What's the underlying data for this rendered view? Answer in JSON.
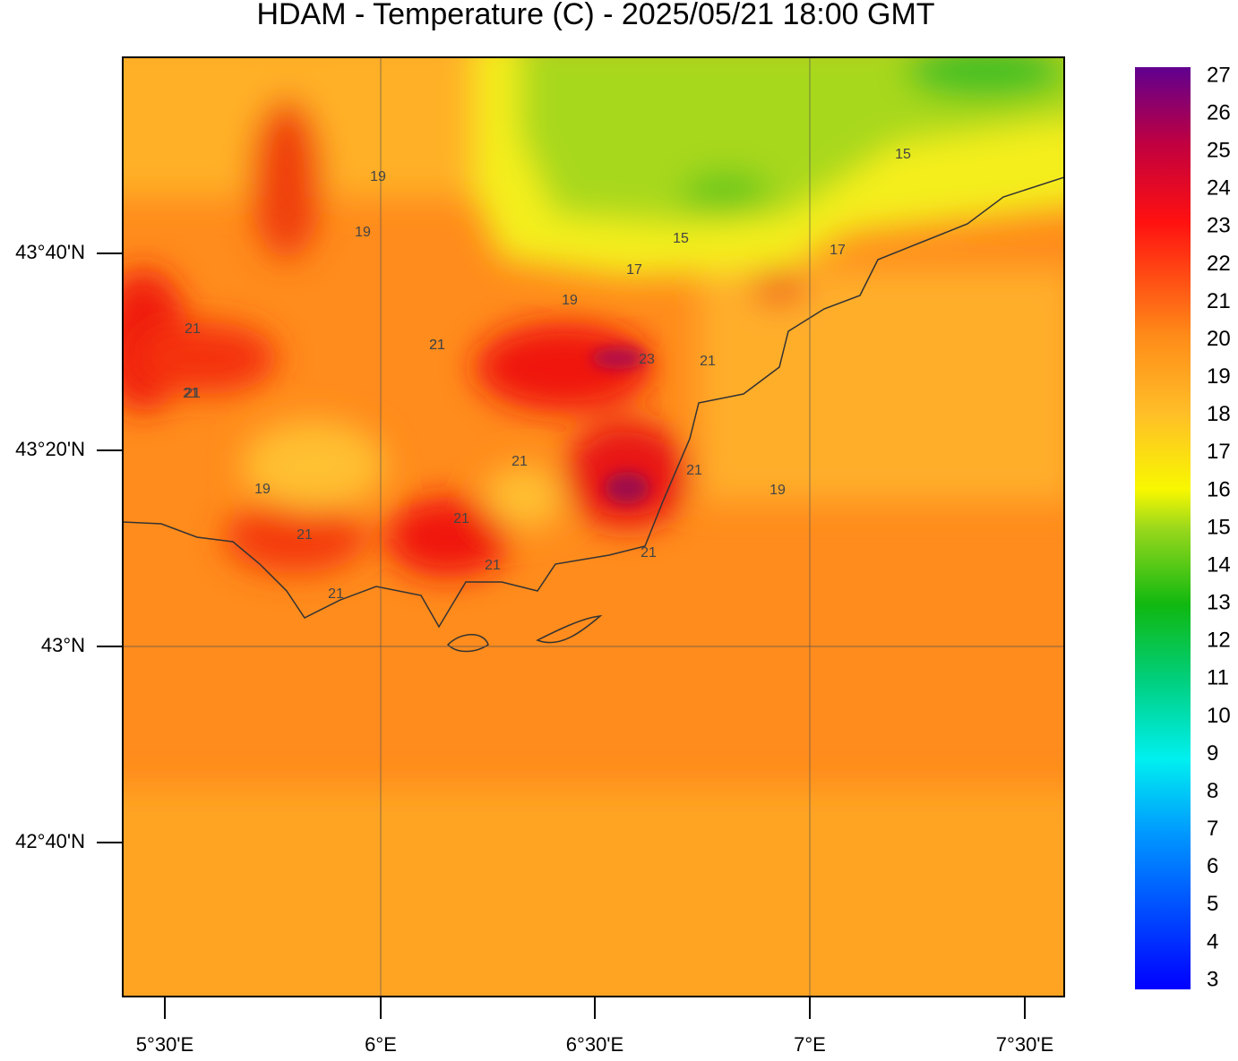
{
  "title": "HDAM - Temperature (C)  -  2025/05/21  18:00 GMT",
  "x_axis": {
    "ticks": [
      "5°30'E",
      "6°E",
      "6°30'E",
      "7°E",
      "7°30'E"
    ]
  },
  "y_axis": {
    "ticks": [
      "43°40'N",
      "43°20'N",
      "43°N",
      "42°40'N"
    ]
  },
  "colorbar": {
    "labels": [
      27,
      26,
      25,
      24,
      23,
      22,
      21,
      20,
      19,
      18,
      17,
      16,
      15,
      14,
      13,
      12,
      11,
      10,
      9,
      8,
      7,
      6,
      5,
      4,
      3
    ]
  },
  "contour_labels": [
    "19",
    "19",
    "15",
    "15",
    "17",
    "17",
    "19",
    "21",
    "21",
    "21",
    "23",
    "21",
    "21",
    "21",
    "21",
    "19",
    "19",
    "21",
    "21",
    "21",
    "21",
    "21",
    "21"
  ]
}
